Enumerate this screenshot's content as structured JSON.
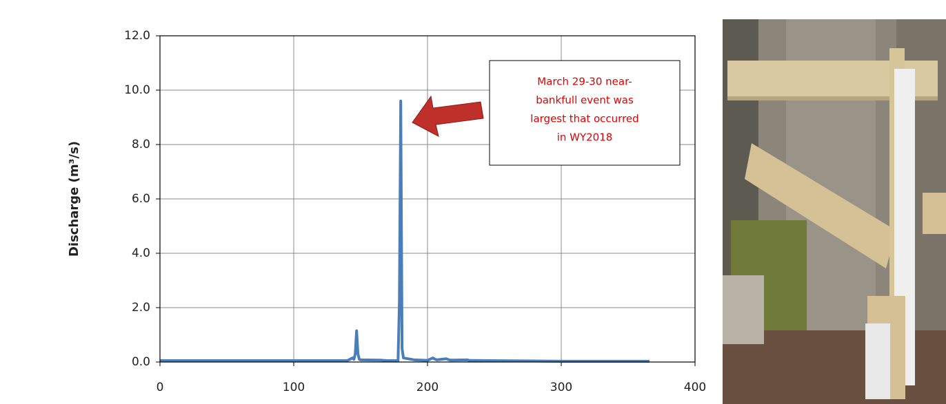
{
  "chart_data": {
    "type": "line",
    "y_label": "Discharge (m³/s)",
    "annotation": [
      "March 29-30 near-",
      "bankfull event was",
      "largest that occurred",
      "in WY2018"
    ],
    "x": [
      0,
      140,
      144,
      145,
      146,
      147,
      148,
      149,
      150,
      165,
      170,
      178,
      179,
      180,
      181,
      182,
      190,
      200,
      204,
      205,
      207,
      214,
      215,
      217,
      230,
      231,
      245,
      300,
      366
    ],
    "series": [
      {
        "color": "#4a7ebb",
        "values": [
          0.05,
          0.05,
          0.15,
          0.1,
          0.3,
          1.15,
          0.3,
          0.1,
          0.08,
          0.07,
          0.05,
          0.05,
          2.2,
          9.6,
          0.5,
          0.15,
          0.08,
          0.06,
          0.15,
          0.12,
          0.08,
          0.12,
          0.1,
          0.07,
          0.08,
          0.06,
          0.05,
          0.03,
          0.03
        ]
      }
    ],
    "xlim": [
      0,
      400
    ],
    "xticks": [
      0,
      100,
      200,
      300,
      400
    ],
    "ylim": [
      0,
      12
    ],
    "yticks": [
      {
        "value": 0,
        "label": "0.0"
      },
      {
        "value": 2,
        "label": "2.0"
      },
      {
        "value": 4,
        "label": "4.0"
      },
      {
        "value": 6,
        "label": "6.0"
      },
      {
        "value": 8,
        "label": "8.0"
      },
      {
        "value": 10,
        "label": "10.0"
      },
      {
        "value": 12,
        "label": "12.0"
      }
    ],
    "grid": true
  }
}
